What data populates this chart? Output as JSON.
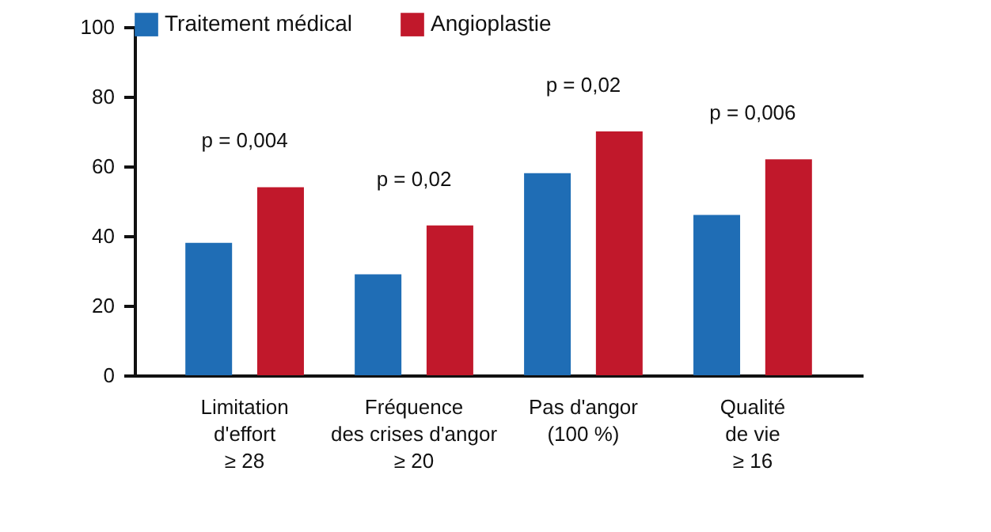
{
  "chart_data": {
    "type": "bar",
    "categories": [
      "Limitation\nd'effort\n≥ 28",
      "Fréquence\ndes crises d'angor\n≥ 20",
      "Pas d'angor\n(100 %)",
      "Qualité\nde vie\n≥ 16"
    ],
    "series": [
      {
        "name": "Traitement médical",
        "color": "#1f6db5",
        "values": [
          38,
          29,
          58,
          46
        ]
      },
      {
        "name": "Angioplastie",
        "color": "#c1182b",
        "values": [
          54,
          43,
          70,
          62
        ]
      }
    ],
    "ylim": [
      0,
      100
    ],
    "yticks": [
      0,
      20,
      40,
      60,
      80,
      100
    ],
    "grid": false,
    "legend": "top",
    "annotations": [
      "p = 0,004",
      "p = 0,02",
      "p = 0,02",
      "p = 0,006"
    ]
  }
}
